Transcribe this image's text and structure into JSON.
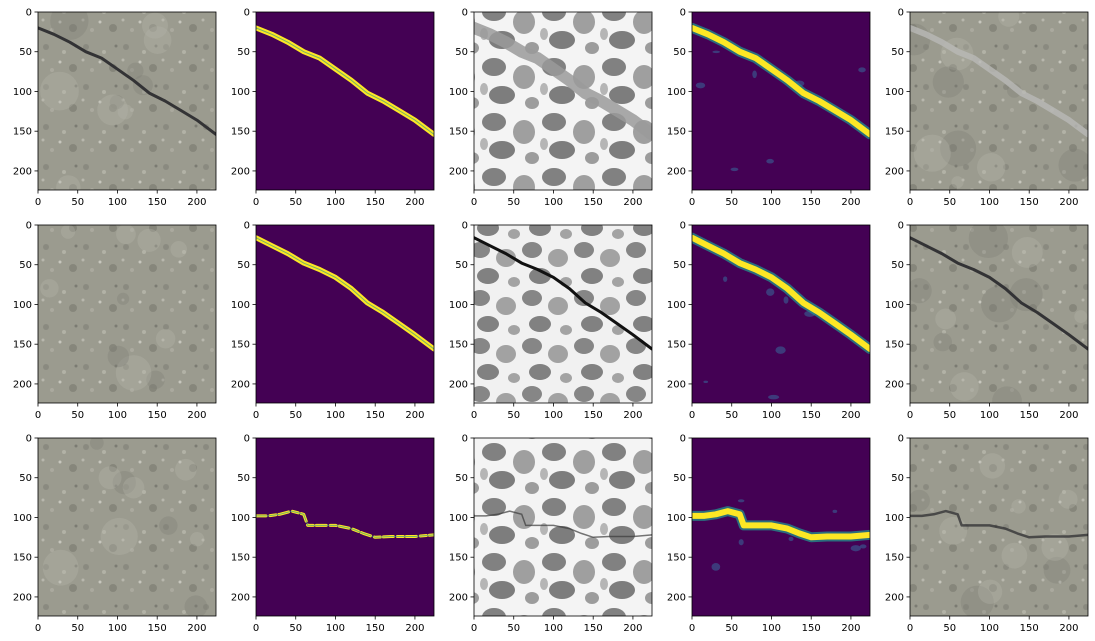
{
  "chart_data": {
    "type": "image_grid",
    "rows": 3,
    "cols": 5,
    "panel_types": [
      "rgb-photo",
      "binary-mask",
      "grayscale-reconstruction",
      "probability-map",
      "rgb-photo-overlay"
    ],
    "x_ticks": [
      0,
      50,
      100,
      150,
      200
    ],
    "y_ticks": [
      0,
      50,
      100,
      150,
      200
    ],
    "xlim": [
      0,
      224
    ],
    "ylim": [
      224,
      0
    ],
    "cracks": [
      {
        "row": 1,
        "points": [
          [
            0,
            20
          ],
          [
            20,
            28
          ],
          [
            40,
            38
          ],
          [
            60,
            50
          ],
          [
            80,
            58
          ],
          [
            100,
            72
          ],
          [
            120,
            86
          ],
          [
            140,
            102
          ],
          [
            160,
            112
          ],
          [
            180,
            124
          ],
          [
            200,
            136
          ],
          [
            224,
            154
          ]
        ]
      },
      {
        "row": 2,
        "points": [
          [
            0,
            16
          ],
          [
            20,
            26
          ],
          [
            40,
            36
          ],
          [
            60,
            48
          ],
          [
            80,
            56
          ],
          [
            100,
            66
          ],
          [
            120,
            80
          ],
          [
            140,
            98
          ],
          [
            160,
            110
          ],
          [
            180,
            124
          ],
          [
            200,
            138
          ],
          [
            224,
            156
          ]
        ]
      },
      {
        "row": 3,
        "points": [
          [
            0,
            98
          ],
          [
            15,
            98
          ],
          [
            30,
            96
          ],
          [
            45,
            92
          ],
          [
            60,
            96
          ],
          [
            65,
            110
          ],
          [
            80,
            110
          ],
          [
            100,
            110
          ],
          [
            120,
            114
          ],
          [
            135,
            120
          ],
          [
            150,
            125
          ],
          [
            170,
            124
          ],
          [
            200,
            124
          ],
          [
            224,
            122
          ]
        ]
      }
    ],
    "colors": {
      "viridis_background": "#440154",
      "viridis_mid": "#21918c",
      "viridis_high": "#fde725",
      "concrete": "#9a9a8e",
      "crack_dark": "#2d2d30"
    }
  }
}
